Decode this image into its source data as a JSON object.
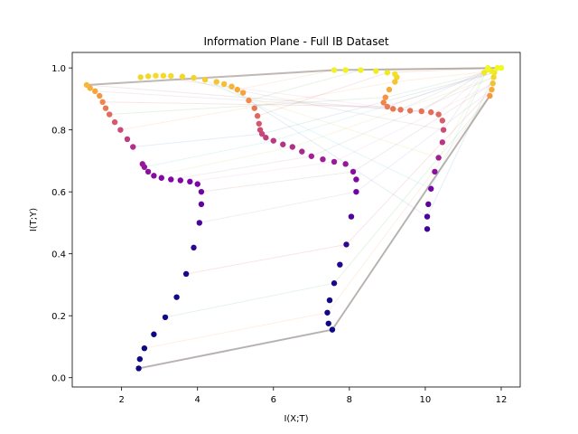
{
  "chart_data": {
    "type": "scatter",
    "title": "Information Plane - Full IB Dataset",
    "xlabel": "I(X;T)",
    "ylabel": "I(T;Y)",
    "xlim": [
      0.7,
      12.5
    ],
    "ylim": [
      -0.03,
      1.05
    ],
    "xticks": [
      2,
      4,
      6,
      8,
      10,
      12
    ],
    "yticks": [
      0.0,
      0.2,
      0.4,
      0.6,
      0.8,
      1.0
    ],
    "ytick_labels": [
      "0.0",
      "0.2",
      "0.4",
      "0.6",
      "0.8",
      "1.0"
    ],
    "grid": false,
    "legend": "none",
    "colormap": "plasma",
    "series": [
      {
        "points": [
          [
            2.45,
            0.03
          ],
          [
            2.48,
            0.06
          ],
          [
            2.6,
            0.095
          ],
          [
            2.85,
            0.14
          ],
          [
            3.15,
            0.195
          ],
          [
            3.45,
            0.26
          ],
          [
            3.7,
            0.335
          ],
          [
            3.9,
            0.42
          ],
          [
            4.05,
            0.5
          ],
          [
            4.1,
            0.56
          ],
          [
            4.1,
            0.6
          ],
          [
            4.0,
            0.625
          ],
          [
            3.8,
            0.633
          ],
          [
            3.55,
            0.637
          ],
          [
            3.3,
            0.64
          ],
          [
            3.05,
            0.645
          ],
          [
            2.85,
            0.652
          ],
          [
            2.7,
            0.665
          ],
          [
            2.6,
            0.68
          ],
          [
            2.55,
            0.69
          ],
          [
            2.3,
            0.745
          ],
          [
            2.15,
            0.77
          ],
          [
            1.97,
            0.8
          ],
          [
            1.82,
            0.825
          ],
          [
            1.68,
            0.85
          ],
          [
            1.58,
            0.87
          ],
          [
            1.5,
            0.89
          ],
          [
            1.42,
            0.91
          ],
          [
            1.3,
            0.925
          ],
          [
            1.17,
            0.935
          ],
          [
            1.08,
            0.945
          ],
          [
            2.5,
            0.97
          ],
          [
            2.7,
            0.973
          ],
          [
            2.9,
            0.975
          ],
          [
            3.1,
            0.975
          ],
          [
            3.3,
            0.974
          ],
          [
            3.6,
            0.972
          ],
          [
            3.9,
            0.968
          ],
          [
            4.2,
            0.962
          ],
          [
            4.5,
            0.955
          ],
          [
            4.7,
            0.948
          ],
          [
            4.9,
            0.94
          ],
          [
            5.05,
            0.93
          ],
          [
            5.2,
            0.92
          ],
          [
            5.35,
            0.895
          ],
          [
            5.5,
            0.87
          ],
          [
            5.58,
            0.845
          ],
          [
            5.62,
            0.82
          ],
          [
            5.65,
            0.8
          ]
        ]
      },
      {
        "points": [
          [
            7.55,
            0.155
          ],
          [
            7.45,
            0.175
          ],
          [
            7.42,
            0.21
          ],
          [
            7.48,
            0.25
          ],
          [
            7.6,
            0.305
          ],
          [
            7.75,
            0.365
          ],
          [
            7.92,
            0.43
          ],
          [
            8.05,
            0.52
          ],
          [
            8.18,
            0.6
          ],
          [
            8.18,
            0.64
          ],
          [
            8.1,
            0.665
          ],
          [
            7.9,
            0.69
          ],
          [
            7.6,
            0.697
          ],
          [
            7.3,
            0.705
          ],
          [
            7.0,
            0.715
          ],
          [
            6.75,
            0.73
          ],
          [
            6.5,
            0.745
          ],
          [
            6.25,
            0.753
          ],
          [
            6.0,
            0.765
          ],
          [
            5.8,
            0.775
          ],
          [
            5.7,
            0.787
          ],
          [
            9.25,
            0.97
          ],
          [
            9.2,
            0.955
          ],
          [
            9.05,
            0.93
          ],
          [
            8.95,
            0.905
          ],
          [
            8.9,
            0.888
          ],
          [
            9.0,
            0.875
          ],
          [
            9.15,
            0.868
          ],
          [
            9.35,
            0.865
          ],
          [
            9.6,
            0.862
          ],
          [
            9.9,
            0.86
          ],
          [
            10.15,
            0.857
          ],
          [
            10.35,
            0.85
          ],
          [
            10.45,
            0.83
          ],
          [
            10.48,
            0.8
          ],
          [
            10.45,
            0.76
          ],
          [
            10.35,
            0.71
          ],
          [
            10.25,
            0.665
          ],
          [
            10.15,
            0.61
          ],
          [
            10.08,
            0.56
          ],
          [
            10.05,
            0.52
          ],
          [
            10.05,
            0.48
          ],
          [
            7.6,
            0.993
          ],
          [
            7.9,
            0.993
          ],
          [
            8.3,
            0.993
          ],
          [
            8.7,
            0.99
          ],
          [
            9.0,
            0.985
          ],
          [
            9.2,
            0.98
          ]
        ]
      },
      {
        "points": [
          [
            11.7,
            0.91
          ],
          [
            11.75,
            0.93
          ],
          [
            11.78,
            0.95
          ],
          [
            11.8,
            0.97
          ],
          [
            11.82,
            0.985
          ],
          [
            11.75,
            0.99
          ],
          [
            11.65,
            0.995
          ],
          [
            11.55,
            0.985
          ],
          [
            11.65,
            1.0
          ],
          [
            11.9,
            1.0
          ],
          [
            12.0,
            1.0
          ]
        ]
      }
    ]
  }
}
